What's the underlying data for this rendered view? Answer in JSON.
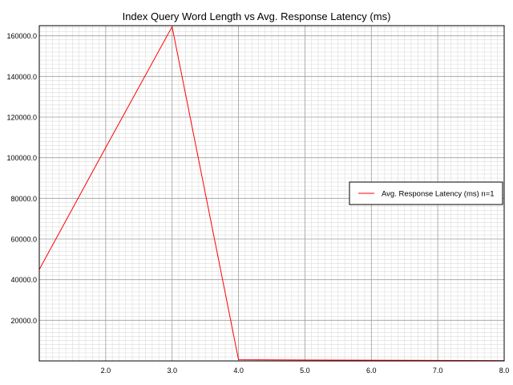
{
  "chart_data": {
    "type": "line",
    "title": "Index Query Word Length vs Avg. Response Latency (ms)",
    "xlabel": "",
    "ylabel": "",
    "xlim": [
      1.0,
      8.0
    ],
    "ylim": [
      0,
      165000
    ],
    "x_ticks": [
      2.0,
      3.0,
      4.0,
      5.0,
      6.0,
      7.0,
      8.0
    ],
    "x_tick_labels": [
      "2.0",
      "3.0",
      "4.0",
      "5.0",
      "6.0",
      "7.0",
      "8.0"
    ],
    "y_ticks": [
      20000,
      40000,
      60000,
      80000,
      100000,
      120000,
      140000,
      160000
    ],
    "y_tick_labels": [
      "20000.0",
      "40000.0",
      "60000.0",
      "80000.0",
      "100000.0",
      "120000.0",
      "140000.0",
      "160000.0"
    ],
    "grid": true,
    "legend_position": "right",
    "series": [
      {
        "name": "Avg. Response Latency (ms) n=1",
        "color": "#ff0000",
        "x": [
          1,
          2,
          3,
          4,
          5,
          6,
          7,
          8
        ],
        "y": [
          45000,
          105000,
          164500,
          600,
          450,
          350,
          250,
          150
        ]
      }
    ]
  }
}
